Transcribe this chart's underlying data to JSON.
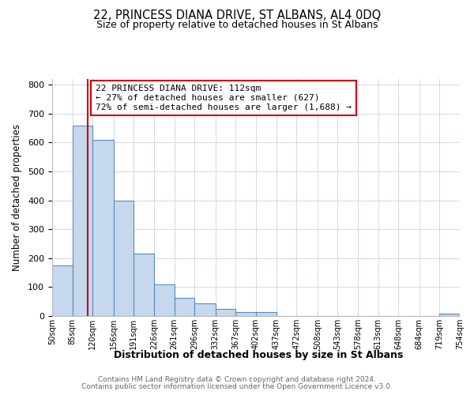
{
  "title": "22, PRINCESS DIANA DRIVE, ST ALBANS, AL4 0DQ",
  "subtitle": "Size of property relative to detached houses in St Albans",
  "xlabel": "Distribution of detached houses by size in St Albans",
  "ylabel": "Number of detached properties",
  "bin_edges": [
    50,
    85,
    120,
    156,
    191,
    226,
    261,
    296,
    332,
    367,
    402,
    437,
    472,
    508,
    543,
    578,
    613,
    648,
    684,
    719,
    754
  ],
  "bar_heights": [
    175,
    660,
    610,
    400,
    215,
    110,
    62,
    45,
    25,
    15,
    15,
    0,
    0,
    0,
    0,
    0,
    0,
    0,
    0,
    7
  ],
  "bar_color": "#c5d8ed",
  "bar_edge_color": "#5a8abf",
  "property_line_x": 112,
  "property_line_color": "#cc0000",
  "annotation_text": "22 PRINCESS DIANA DRIVE: 112sqm\n← 27% of detached houses are smaller (627)\n72% of semi-detached houses are larger (1,688) →",
  "annotation_box_color": "#ffffff",
  "annotation_box_edge": "#cc0000",
  "tick_labels": [
    "50sqm",
    "85sqm",
    "120sqm",
    "156sqm",
    "191sqm",
    "226sqm",
    "261sqm",
    "296sqm",
    "332sqm",
    "367sqm",
    "402sqm",
    "437sqm",
    "472sqm",
    "508sqm",
    "543sqm",
    "578sqm",
    "613sqm",
    "648sqm",
    "684sqm",
    "719sqm",
    "754sqm"
  ],
  "ylim": [
    0,
    820
  ],
  "yticks": [
    0,
    100,
    200,
    300,
    400,
    500,
    600,
    700,
    800
  ],
  "footer_line1": "Contains HM Land Registry data © Crown copyright and database right 2024.",
  "footer_line2": "Contains public sector information licensed under the Open Government Licence v3.0.",
  "background_color": "#ffffff",
  "grid_color": "#d0d8e8"
}
